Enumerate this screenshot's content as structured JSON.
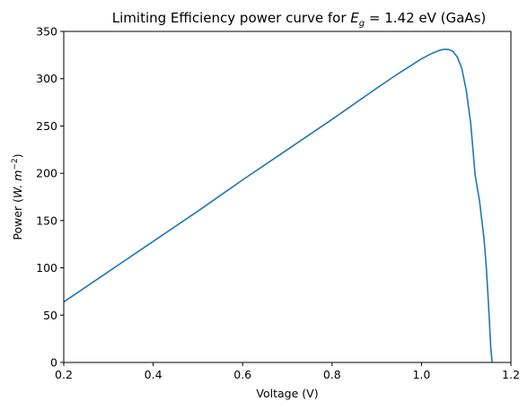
{
  "chart_data": {
    "type": "line",
    "title_prefix": "Limiting Efficiency power curve for ",
    "title_symbol": "E",
    "title_subscript": "g",
    "title_suffix": " = 1.42 eV (GaAs)",
    "xlabel": "Voltage (V)",
    "ylabel_prefix": "Power (",
    "ylabel_unit": "W. m",
    "ylabel_exponent": "−2",
    "ylabel_suffix": ")",
    "xlim": [
      0.2,
      1.2
    ],
    "ylim": [
      0,
      350
    ],
    "x_ticks": [
      0.2,
      0.4,
      0.6,
      0.8,
      1.0,
      1.2
    ],
    "x_tick_labels": [
      "0.2",
      "0.4",
      "0.6",
      "0.8",
      "1.0",
      "1.2"
    ],
    "y_ticks": [
      0,
      50,
      100,
      150,
      200,
      250,
      300,
      350
    ],
    "y_tick_labels": [
      "0",
      "50",
      "100",
      "150",
      "200",
      "250",
      "300",
      "350"
    ],
    "grid": false,
    "color": "#1f77b4",
    "series": [
      {
        "x": [
          0.2,
          0.3,
          0.4,
          0.5,
          0.6,
          0.7,
          0.8,
          0.9,
          0.95,
          1.0,
          1.02,
          1.04,
          1.05,
          1.06,
          1.07,
          1.08,
          1.09,
          1.1,
          1.11,
          1.12,
          1.13,
          1.14,
          1.145,
          1.15,
          1.155,
          1.158
        ],
        "y": [
          64,
          96,
          128,
          160,
          193,
          225,
          257,
          290,
          306,
          321,
          326,
          330,
          331,
          331,
          329,
          323,
          311,
          288,
          253,
          198,
          170,
          130,
          100,
          60,
          15,
          0
        ]
      }
    ]
  }
}
